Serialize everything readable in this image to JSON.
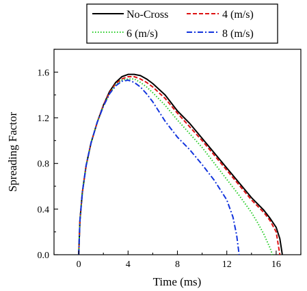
{
  "chart_data": {
    "type": "line",
    "xlabel": "Time (ms)",
    "ylabel": "Spreading Factor",
    "xlim": [
      -2,
      18
    ],
    "ylim": [
      0,
      1.8
    ],
    "xticks": [
      0,
      4,
      8,
      12,
      16
    ],
    "yticks": [
      0.0,
      0.4,
      0.8,
      1.2,
      1.6
    ],
    "xtick_labels": [
      "0",
      "4",
      "8",
      "12",
      "16"
    ],
    "ytick_labels": [
      "0.0",
      "0.4",
      "0.8",
      "1.2",
      "1.6"
    ],
    "grid": false,
    "legend_position": "top",
    "series": [
      {
        "name": "No-Cross",
        "color": "#000000",
        "dash": "solid",
        "x": [
          0.0,
          0.1,
          0.3,
          0.6,
          1.0,
          1.5,
          2.0,
          2.5,
          3.0,
          3.5,
          4.0,
          4.5,
          5.0,
          5.5,
          6.0,
          7.0,
          8.0,
          9.0,
          10.0,
          11.0,
          12.0,
          13.0,
          14.0,
          15.0,
          15.5,
          16.0,
          16.3,
          16.5
        ],
        "y": [
          0.0,
          0.3,
          0.55,
          0.78,
          0.98,
          1.16,
          1.31,
          1.43,
          1.51,
          1.56,
          1.58,
          1.58,
          1.57,
          1.54,
          1.5,
          1.4,
          1.26,
          1.15,
          1.02,
          0.89,
          0.76,
          0.63,
          0.5,
          0.39,
          0.32,
          0.24,
          0.14,
          0.0
        ]
      },
      {
        "name": "4 (m/s)",
        "color": "#dd1111",
        "dash": "dashed",
        "x": [
          0.0,
          0.1,
          0.3,
          0.6,
          1.0,
          1.5,
          2.0,
          2.5,
          3.0,
          3.5,
          4.0,
          4.5,
          5.0,
          5.5,
          6.0,
          7.0,
          8.0,
          9.0,
          10.0,
          11.0,
          12.0,
          13.0,
          14.0,
          15.0,
          15.5,
          16.0,
          16.3
        ],
        "y": [
          0.0,
          0.3,
          0.55,
          0.78,
          0.98,
          1.16,
          1.31,
          1.42,
          1.5,
          1.54,
          1.56,
          1.56,
          1.54,
          1.51,
          1.47,
          1.37,
          1.24,
          1.12,
          1.0,
          0.87,
          0.74,
          0.61,
          0.48,
          0.37,
          0.3,
          0.2,
          0.0
        ]
      },
      {
        "name": "6 (m/s)",
        "color": "#22cc22",
        "dash": "dotted",
        "x": [
          0.0,
          0.1,
          0.3,
          0.6,
          1.0,
          1.5,
          2.0,
          2.5,
          3.0,
          3.5,
          4.0,
          4.5,
          5.0,
          5.5,
          6.0,
          7.0,
          8.0,
          9.0,
          10.0,
          11.0,
          12.0,
          13.0,
          14.0,
          14.5,
          15.0,
          15.5,
          15.7
        ],
        "y": [
          0.0,
          0.3,
          0.55,
          0.78,
          0.98,
          1.16,
          1.3,
          1.41,
          1.49,
          1.53,
          1.54,
          1.54,
          1.51,
          1.47,
          1.42,
          1.31,
          1.18,
          1.06,
          0.94,
          0.8,
          0.66,
          0.52,
          0.37,
          0.28,
          0.18,
          0.06,
          0.0
        ]
      },
      {
        "name": "8 (m/s)",
        "color": "#1133dd",
        "dash": "dashdot",
        "x": [
          0.0,
          0.1,
          0.3,
          0.6,
          1.0,
          1.5,
          2.0,
          2.5,
          3.0,
          3.5,
          4.0,
          4.5,
          5.0,
          5.5,
          6.0,
          7.0,
          8.0,
          9.0,
          10.0,
          11.0,
          12.0,
          12.5,
          12.8,
          13.0
        ],
        "y": [
          0.0,
          0.3,
          0.55,
          0.78,
          0.98,
          1.16,
          1.3,
          1.41,
          1.48,
          1.52,
          1.53,
          1.51,
          1.47,
          1.41,
          1.34,
          1.17,
          1.03,
          0.92,
          0.79,
          0.65,
          0.48,
          0.33,
          0.17,
          0.0
        ]
      }
    ]
  }
}
